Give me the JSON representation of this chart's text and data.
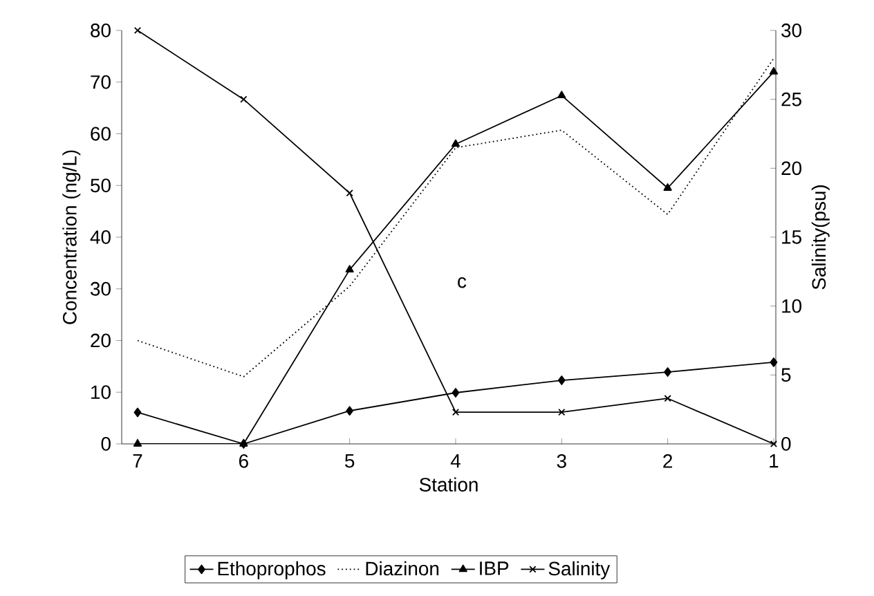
{
  "chart_data": {
    "type": "line",
    "xlabel": "Station",
    "ylabel": "Concentration (ng/L)",
    "y2label": "Salinity(psu)",
    "categories": [
      "7",
      "6",
      "5",
      "4",
      "3",
      "2",
      "1"
    ],
    "series": [
      {
        "name": "Ethoprophos",
        "color": "#000000",
        "marker": "diamond",
        "line_style": "solid",
        "values": [
          6.1,
          0,
          6.4,
          9.9,
          12.3,
          13.9,
          15.8
        ]
      },
      {
        "name": "Diazinon",
        "color": "#000000",
        "marker": "none",
        "line_style": "dotted",
        "values": [
          20,
          13,
          30.5,
          57.3,
          60.7,
          44.4,
          74.6
        ]
      },
      {
        "name": "IBP",
        "color": "#000000",
        "marker": "triangle",
        "line_style": "solid",
        "values": [
          0,
          0,
          33.7,
          58,
          67.4,
          49.5,
          72
        ]
      },
      {
        "name": "Salinity",
        "color": "#000000",
        "marker": "cross",
        "line_style": "solid",
        "axis": "y2",
        "values": [
          30,
          25.0,
          18.2,
          2.3,
          2.3,
          3.3,
          0
        ]
      }
    ],
    "ylim": [
      0,
      80
    ],
    "yticks": [
      0,
      10,
      20,
      30,
      40,
      50,
      60,
      70,
      80
    ],
    "y2lim": [
      0,
      30
    ],
    "y2ticks": [
      0,
      5,
      10,
      15,
      20,
      25,
      30
    ],
    "annotations": [
      "c"
    ],
    "grid": false,
    "legend": "bottom"
  }
}
